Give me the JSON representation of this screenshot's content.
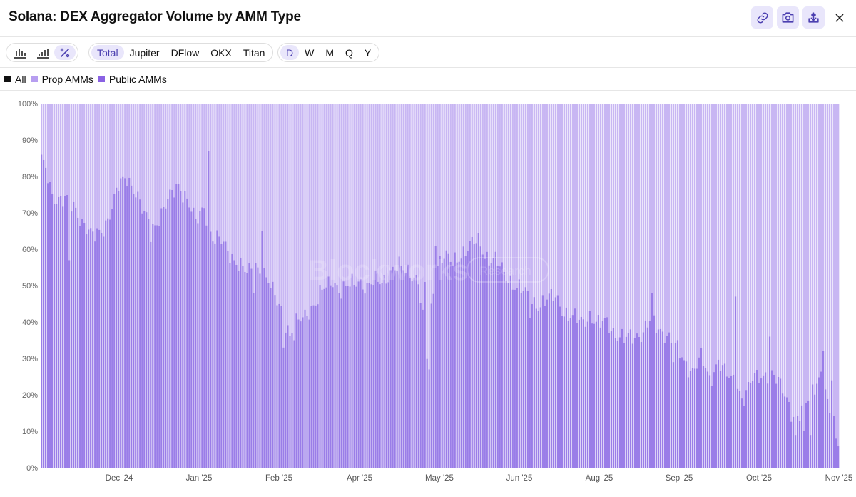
{
  "header": {
    "title": "Solana: DEX Aggregator Volume by AMM Type"
  },
  "toolbar": {
    "views": [
      "bar-chart-icon",
      "stacked-bar-icon",
      "percent-icon"
    ],
    "aggregators": [
      "Total",
      "Jupiter",
      "DFlow",
      "OKX",
      "Titan"
    ],
    "active_aggregator": "Total",
    "intervals": [
      "D",
      "W",
      "M",
      "Q",
      "Y"
    ],
    "active_interval": "D"
  },
  "legend": [
    {
      "label": "All",
      "color": "#111111"
    },
    {
      "label": "Prop AMMs",
      "color": "#b79ef0"
    },
    {
      "label": "Public AMMs",
      "color": "#8a62e3"
    }
  ],
  "watermark": {
    "main": "Blockworks",
    "sub": "Research"
  },
  "chart_data": {
    "type": "bar",
    "stacked": true,
    "normalized": true,
    "x_ticks": [
      "Dec '24",
      "Jan '25",
      "Feb '25",
      "Apr '25",
      "May '25",
      "Jun '25",
      "Aug '25",
      "Sep '25",
      "Oct '25",
      "Nov '25"
    ],
    "y_ticks": [
      "0%",
      "10%",
      "20%",
      "30%",
      "40%",
      "50%",
      "60%",
      "70%",
      "80%",
      "90%",
      "100%"
    ],
    "ylim": [
      0,
      100
    ],
    "colors": {
      "prop": "#c8b6f3",
      "public": "#9a7de8"
    },
    "public_amms_anchors": [
      [
        0,
        84
      ],
      [
        3,
        80
      ],
      [
        5,
        75
      ],
      [
        8,
        74
      ],
      [
        12,
        73
      ],
      [
        16,
        71
      ],
      [
        20,
        67
      ],
      [
        24,
        63
      ],
      [
        28,
        65
      ],
      [
        32,
        70
      ],
      [
        36,
        77
      ],
      [
        40,
        80
      ],
      [
        44,
        76
      ],
      [
        48,
        69
      ],
      [
        52,
        66
      ],
      [
        56,
        70
      ],
      [
        60,
        74
      ],
      [
        64,
        78
      ],
      [
        68,
        74
      ],
      [
        72,
        67
      ],
      [
        76,
        72
      ],
      [
        80,
        63
      ],
      [
        84,
        62
      ],
      [
        88,
        59
      ],
      [
        92,
        56
      ],
      [
        96,
        53
      ],
      [
        100,
        56
      ],
      [
        104,
        53
      ],
      [
        108,
        48
      ],
      [
        112,
        44
      ],
      [
        116,
        36
      ],
      [
        120,
        40
      ],
      [
        124,
        43
      ],
      [
        128,
        45
      ],
      [
        132,
        49
      ],
      [
        136,
        52
      ],
      [
        140,
        48
      ],
      [
        144,
        50
      ],
      [
        148,
        52
      ],
      [
        152,
        49
      ],
      [
        156,
        51
      ],
      [
        160,
        52
      ],
      [
        164,
        54
      ],
      [
        168,
        55
      ],
      [
        172,
        54
      ],
      [
        176,
        51
      ],
      [
        180,
        30
      ],
      [
        184,
        56
      ],
      [
        188,
        58
      ],
      [
        192,
        56
      ],
      [
        196,
        59
      ],
      [
        200,
        61
      ],
      [
        204,
        62
      ],
      [
        208,
        58
      ],
      [
        212,
        57
      ],
      [
        216,
        53
      ],
      [
        220,
        51
      ],
      [
        224,
        49
      ],
      [
        228,
        46
      ],
      [
        232,
        45
      ],
      [
        236,
        46
      ],
      [
        240,
        47
      ],
      [
        244,
        43
      ],
      [
        248,
        41
      ],
      [
        252,
        40
      ],
      [
        256,
        42
      ],
      [
        260,
        39
      ],
      [
        264,
        40
      ],
      [
        268,
        37
      ],
      [
        272,
        35
      ],
      [
        276,
        36
      ],
      [
        280,
        37
      ],
      [
        284,
        40
      ],
      [
        288,
        38
      ],
      [
        292,
        37
      ],
      [
        296,
        33
      ],
      [
        300,
        29
      ],
      [
        304,
        27
      ],
      [
        308,
        30
      ],
      [
        312,
        24
      ],
      [
        316,
        30
      ],
      [
        320,
        25
      ],
      [
        324,
        23
      ],
      [
        328,
        20
      ],
      [
        332,
        24
      ],
      [
        336,
        25
      ],
      [
        340,
        27
      ],
      [
        344,
        23
      ],
      [
        348,
        19
      ],
      [
        352,
        13
      ],
      [
        356,
        16
      ],
      [
        360,
        22
      ],
      [
        364,
        26
      ],
      [
        368,
        14
      ],
      [
        371,
        12
      ],
      [
        372,
        8
      ]
    ],
    "public_amms_spikes": [
      [
        0,
        86
      ],
      [
        78,
        87
      ],
      [
        103,
        65
      ],
      [
        118,
        35
      ],
      [
        181,
        23
      ],
      [
        184,
        61
      ],
      [
        285,
        48
      ],
      [
        324,
        47
      ],
      [
        340,
        36
      ],
      [
        356,
        10
      ],
      [
        365,
        32
      ],
      [
        369,
        24
      ]
    ],
    "public_amms_dips": [
      [
        13,
        57
      ],
      [
        51,
        62
      ],
      [
        99,
        48
      ],
      [
        113,
        33
      ],
      [
        179,
        51
      ],
      [
        181,
        27
      ],
      [
        228,
        41
      ],
      [
        295,
        29
      ],
      [
        327,
        19
      ],
      [
        352,
        9
      ],
      [
        359,
        9
      ],
      [
        371,
        8
      ]
    ],
    "bar_count": 373
  }
}
